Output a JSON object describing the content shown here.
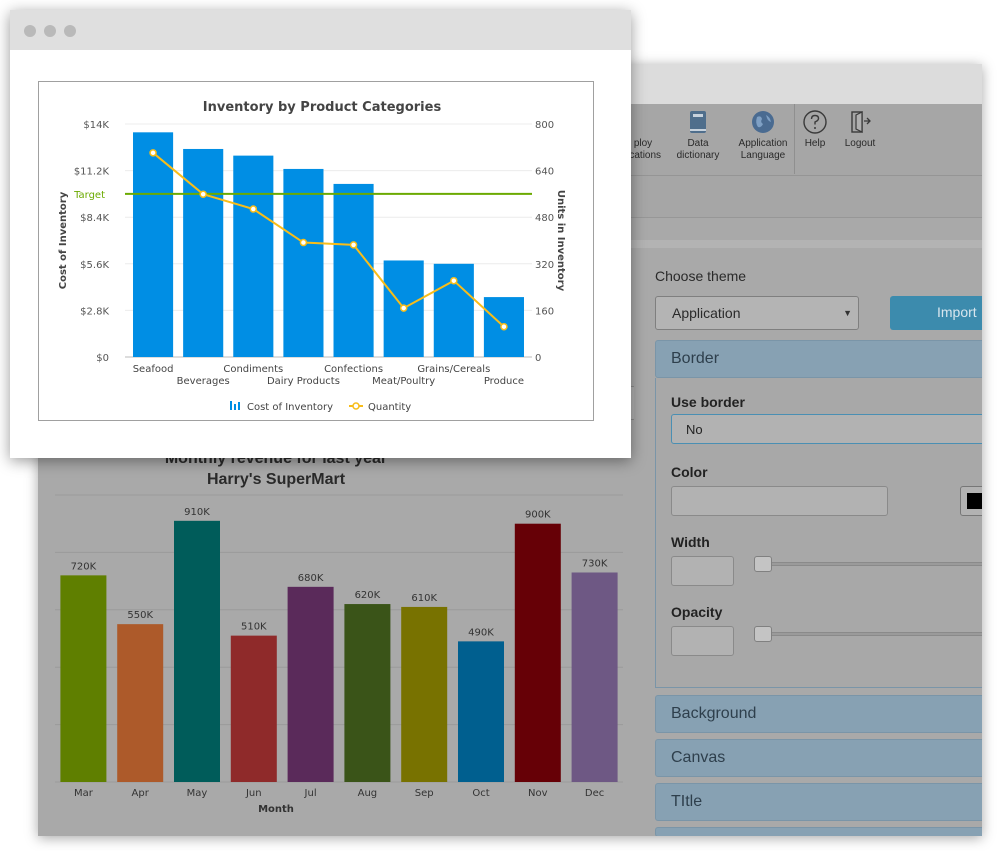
{
  "toolbar": {
    "items": [
      {
        "label_1": "ploy",
        "label_2": "lications",
        "icon": "cloud-upload-icon"
      },
      {
        "label_1": "Data",
        "label_2": "dictionary",
        "icon": "book-icon"
      },
      {
        "label_1": "Application",
        "label_2": "Language",
        "icon": "globe-icon"
      },
      {
        "label_1": "Help",
        "label_2": "",
        "icon": "help-icon"
      },
      {
        "label_1": "Logout",
        "label_2": "",
        "icon": "logout-icon"
      }
    ]
  },
  "theme": {
    "choose_label": "Choose theme",
    "selected": "Application",
    "import_label": "Import",
    "sections": {
      "border": "Border",
      "background": "Background",
      "canvas": "Canvas",
      "title": "TItle"
    },
    "fields": {
      "use_border_label": "Use border",
      "use_border_value": "No",
      "color_label": "Color",
      "color_value": "#000000",
      "width_label": "Width",
      "opacity_label": "Opacity"
    }
  },
  "chart_data": [
    {
      "type": "bar",
      "title": "Inventory by Product Categories",
      "categories": [
        "Seafood",
        "Beverages",
        "Condiments",
        "Dairy Products",
        "Confections",
        "Meat/Poultry",
        "Grains/Cereals",
        "Produce"
      ],
      "series": [
        {
          "name": "Cost of Inventory",
          "type": "bar",
          "axis": "left",
          "color": "#008ee4",
          "values": [
            13500,
            12500,
            12100,
            11300,
            10400,
            5800,
            5600,
            3600
          ]
        },
        {
          "name": "Quantity",
          "type": "line",
          "axis": "right",
          "color": "#f8bd19",
          "values": [
            701,
            559,
            508,
            393,
            385,
            168,
            262,
            104
          ]
        }
      ],
      "ylabel": "Cost of Inventory",
      "y2label": "Units in Inventory",
      "ylim": [
        0,
        14000
      ],
      "y2lim": [
        0,
        800
      ],
      "yticks": [
        "$0",
        "$2.8K",
        "$5.6K",
        "$8.4K",
        "$11.2K",
        "$14K"
      ],
      "y2ticks": [
        "0",
        "160",
        "320",
        "480",
        "640",
        "800"
      ],
      "trendline": {
        "label": "Target",
        "value": 9800,
        "color": "#6baa01"
      },
      "legend": "bottom-center"
    },
    {
      "type": "bar",
      "title": "Monthly revenue for last year",
      "subtitle": "Harry's SuperMart",
      "categories": [
        "Mar",
        "Apr",
        "May",
        "Jun",
        "Jul",
        "Aug",
        "Sep",
        "Oct",
        "Nov",
        "Dec"
      ],
      "values": [
        720000,
        550000,
        910000,
        510000,
        680000,
        620000,
        610000,
        490000,
        900000,
        730000
      ],
      "data_labels": [
        "720K",
        "550K",
        "910K",
        "510K",
        "680K",
        "620K",
        "610K",
        "490K",
        "900K",
        "730K"
      ],
      "colors": [
        "#5f7f00",
        "#ad5a2a",
        "#005c5a",
        "#8f2a2a",
        "#5a2a5a",
        "#3a5418",
        "#787200",
        "#005f8f",
        "#660006",
        "#6e5884"
      ],
      "xlabel": "Month",
      "ylim": [
        0,
        1000000
      ]
    }
  ]
}
